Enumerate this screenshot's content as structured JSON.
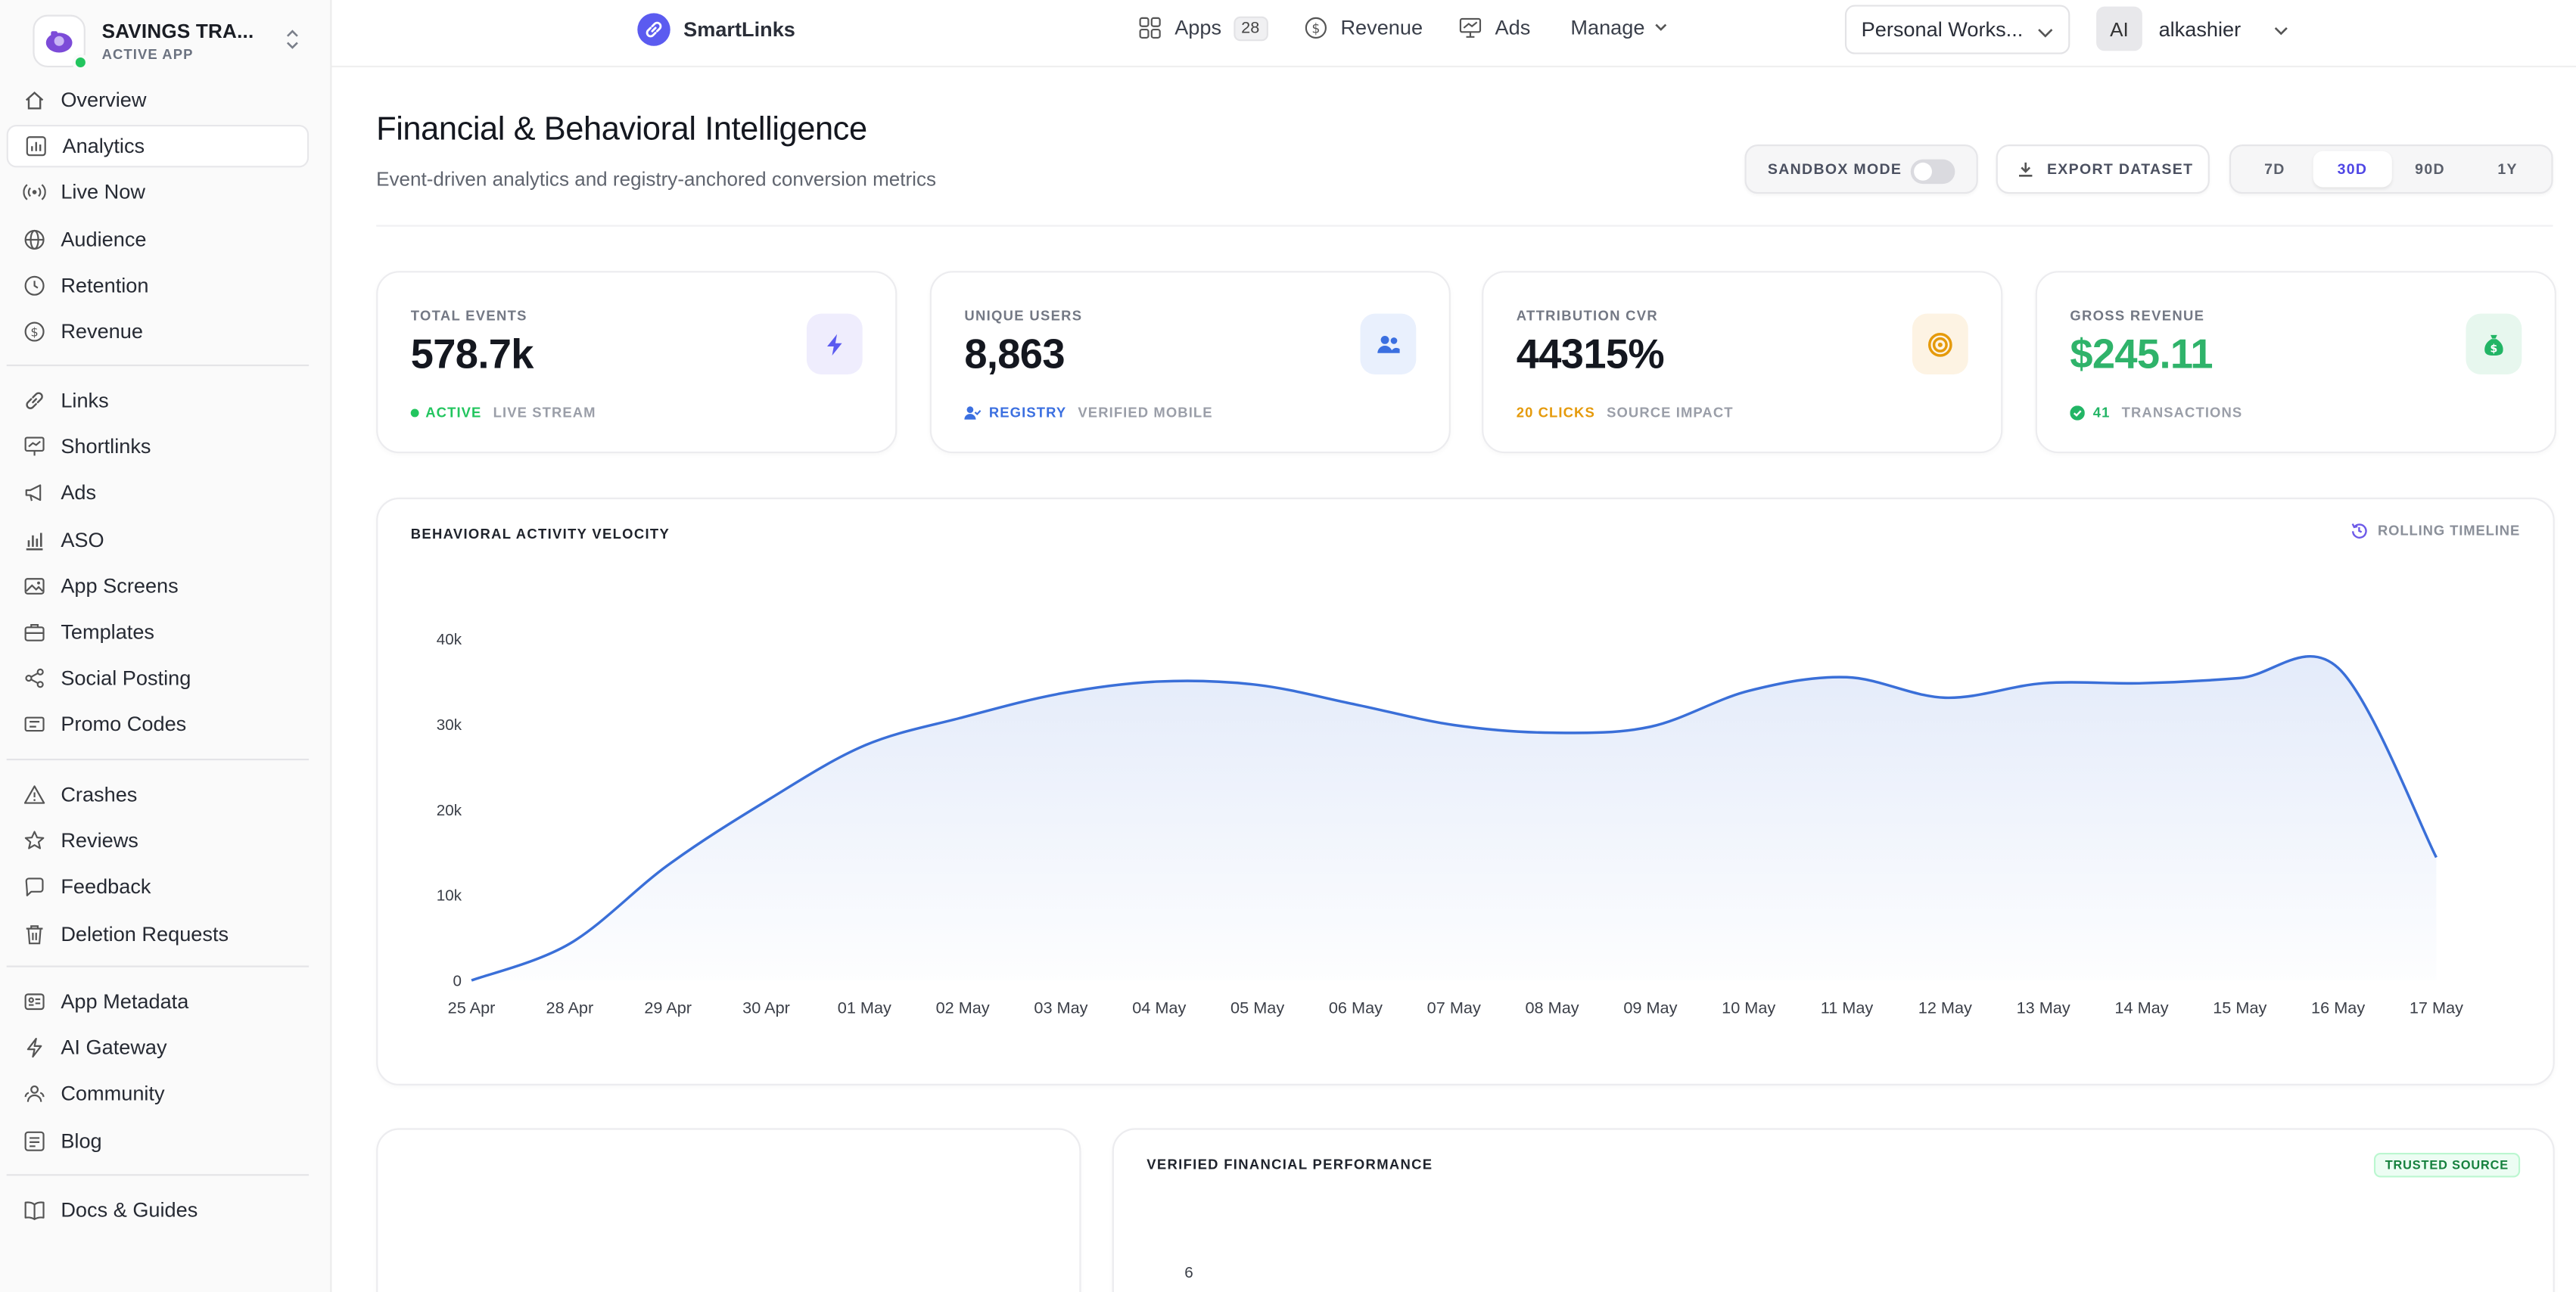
{
  "app": {
    "name": "SAVINGS TRA...",
    "status": "ACTIVE APP"
  },
  "sidebar": {
    "groups": [
      [
        {
          "label": "Overview",
          "icon": "home-icon"
        },
        {
          "label": "Analytics",
          "icon": "bar-chart-icon",
          "active": true
        },
        {
          "label": "Live Now",
          "icon": "broadcast-icon"
        },
        {
          "label": "Audience",
          "icon": "globe-icon"
        },
        {
          "label": "Retention",
          "icon": "clock-icon"
        },
        {
          "label": "Revenue",
          "icon": "dollar-icon"
        }
      ],
      [
        {
          "label": "Links",
          "icon": "link-icon"
        },
        {
          "label": "Shortlinks",
          "icon": "presentation-icon"
        },
        {
          "label": "Ads",
          "icon": "megaphone-icon"
        },
        {
          "label": "ASO",
          "icon": "bars-icon"
        },
        {
          "label": "App Screens",
          "icon": "image-icon"
        },
        {
          "label": "Templates",
          "icon": "briefcase-icon"
        },
        {
          "label": "Social Posting",
          "icon": "share-icon"
        },
        {
          "label": "Promo Codes",
          "icon": "ticket-icon"
        }
      ],
      [
        {
          "label": "Crashes",
          "icon": "warning-icon"
        },
        {
          "label": "Reviews",
          "icon": "star-icon"
        },
        {
          "label": "Feedback",
          "icon": "message-icon"
        },
        {
          "label": "Deletion Requests",
          "icon": "trash-icon"
        }
      ],
      [
        {
          "label": "App Metadata",
          "icon": "metadata-icon"
        },
        {
          "label": "AI Gateway",
          "icon": "bolt-icon"
        },
        {
          "label": "Community",
          "icon": "community-icon"
        },
        {
          "label": "Blog",
          "icon": "blog-icon"
        }
      ],
      [
        {
          "label": "Docs & Guides",
          "icon": "book-icon"
        }
      ]
    ]
  },
  "topbar": {
    "brand": "SmartLinks",
    "apps_label": "Apps",
    "apps_count": "28",
    "revenue_label": "Revenue",
    "ads_label": "Ads",
    "manage_label": "Manage",
    "workspace": "Personal Works...",
    "user_initials": "AI",
    "user_name": "alkashier"
  },
  "header": {
    "title": "Financial & Behavioral Intelligence",
    "subtitle": "Event-driven analytics and registry-anchored conversion metrics",
    "sandbox_label": "SANDBOX MODE",
    "sandbox_on": false,
    "export_label": "EXPORT DATASET",
    "ranges": [
      "7D",
      "30D",
      "90D",
      "1Y"
    ],
    "active_range": "30D"
  },
  "stats": [
    {
      "label": "TOTAL EVENTS",
      "value": "578.7k",
      "foot_a": "ACTIVE",
      "foot_b": "LIVE STREAM",
      "accent": "#22c55e",
      "icon": "bolt-icon",
      "icon_bg": "#efedfd",
      "icon_color": "#5b5bf0"
    },
    {
      "label": "UNIQUE USERS",
      "value": "8,863",
      "foot_a": "REGISTRY",
      "foot_b": "VERIFIED MOBILE",
      "accent": "#3b6fe0",
      "icon": "users-icon",
      "icon_bg": "#e9f0fd",
      "icon_color": "#3b6fe0"
    },
    {
      "label": "ATTRIBUTION CVR",
      "value": "44315%",
      "foot_a": "20 CLICKS",
      "foot_b": "SOURCE IMPACT",
      "accent": "#e59a0b",
      "icon": "target-icon",
      "icon_bg": "#fdf3e3",
      "icon_color": "#e59a0b"
    },
    {
      "label": "GROSS REVENUE",
      "value": "$245.11",
      "foot_a": "41",
      "foot_b": "TRANSACTIONS",
      "accent": "#22b565",
      "icon": "money-bag-icon",
      "icon_bg": "#e7f7ee",
      "icon_color": "#22b565"
    }
  ],
  "activity": {
    "title": "BEHAVIORAL ACTIVITY VELOCITY",
    "badge": "ROLLING TIMELINE"
  },
  "chart_data": {
    "type": "area",
    "x": [
      "25 Apr",
      "28 Apr",
      "29 Apr",
      "30 Apr",
      "01 May",
      "02 May",
      "03 May",
      "04 May",
      "05 May",
      "06 May",
      "07 May",
      "08 May",
      "09 May",
      "10 May",
      "11 May",
      "12 May",
      "13 May",
      "14 May",
      "15 May",
      "16 May",
      "17 May"
    ],
    "series": [
      {
        "values": [
          0,
          4300,
          13500,
          21000,
          27500,
          30800,
          33600,
          35000,
          34600,
          32300,
          29900,
          29000,
          29700,
          33900,
          35500,
          33100,
          34800,
          34800,
          35400,
          36600,
          14400
        ]
      }
    ],
    "yticks": [
      "0",
      "10k",
      "20k",
      "30k",
      "40k"
    ],
    "ylim": [
      0,
      40000
    ],
    "grid": false,
    "color": "#3a6fd8"
  },
  "financial": {
    "title": "VERIFIED FINANCIAL PERFORMANCE",
    "badge": "TRUSTED SOURCE",
    "ytick_top": "6"
  }
}
